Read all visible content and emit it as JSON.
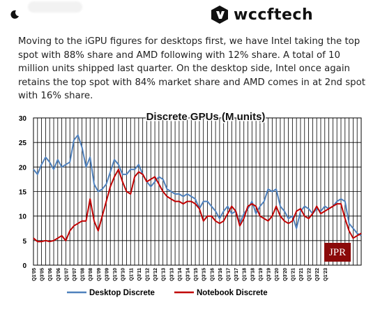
{
  "header": {
    "brand_name": "wccftech",
    "brand_icon": "wccftech-logo-icon",
    "theme_icon": "moon-icon"
  },
  "article": {
    "paragraph": "Moving to the iGPU figures for desktops first, we have Intel taking the top spot with 88% share and AMD following with 12% share. A total of 10 million units shipped last quarter. On the desktop side, Intel once again retains the top spot with 84% market share and AMD comes in at 2nd spot with 16% share."
  },
  "chart_data": {
    "type": "line",
    "title": "Discrete GPUs (M units)",
    "ylim": [
      0,
      30
    ],
    "yticks": [
      0,
      5,
      10,
      15,
      20,
      25,
      30
    ],
    "grid": true,
    "legend_position": "bottom",
    "watermark": "JPR",
    "xtick_labels": [
      "Q1'05",
      "Q3'05",
      "Q1'06",
      "Q3'06",
      "Q1'07",
      "Q3'07",
      "Q1'08",
      "Q3'08",
      "Q1'09",
      "Q3'09",
      "Q1'10",
      "Q3'10",
      "Q1'11",
      "Q3'11",
      "Q1'12",
      "Q3'12",
      "Q1'13",
      "Q3'13",
      "Q1'14",
      "Q3'14",
      "Q1'15",
      "Q3'15",
      "Q1'16",
      "Q3'16",
      "Q1'17",
      "Q3'17",
      "Q1'18",
      "Q3'18",
      "Q1'19",
      "Q3'19",
      "Q1'20",
      "Q3'20",
      "Q1'21",
      "Q3'21",
      "Q1'22",
      "Q3'22",
      "Q1'23"
    ],
    "series": [
      {
        "name": "Desktop Discrete",
        "color": "#4f81bd",
        "values": [
          19.5,
          18.5,
          20.5,
          22,
          21,
          19.5,
          21.5,
          20,
          20.5,
          21,
          25.5,
          26.5,
          24,
          20,
          22,
          16.5,
          15,
          15.5,
          16.5,
          19,
          21.5,
          20.5,
          18.5,
          18.5,
          19.5,
          19.5,
          20.5,
          18.5,
          17,
          16,
          17,
          18,
          17.5,
          15.5,
          15,
          14.5,
          14.5,
          14,
          14.5,
          14,
          13.5,
          11.5,
          13,
          13,
          12,
          11,
          9.5,
          11,
          12,
          10.5,
          11,
          8.5,
          10.5,
          11.5,
          13,
          10.5,
          12,
          13,
          15.5,
          15,
          15.5,
          12,
          11,
          9.5,
          10,
          7.5,
          11,
          12,
          11.5,
          10.5,
          11.5,
          11,
          12,
          11.5,
          12,
          13,
          13.5,
          13,
          8.5,
          7.5,
          6.5,
          6
        ]
      },
      {
        "name": "Notebook Discrete",
        "color": "#c00000",
        "values": [
          5.5,
          4.8,
          4.8,
          5,
          4.8,
          5,
          5.5,
          6,
          5,
          7,
          8,
          8.5,
          9,
          9,
          13.5,
          9,
          7,
          10,
          13,
          16,
          18,
          19.5,
          17,
          15,
          14.5,
          18,
          19,
          18.5,
          17,
          17.5,
          18,
          16.5,
          15,
          14,
          13.5,
          13,
          13,
          12.5,
          13,
          13,
          12.5,
          11.5,
          9,
          10,
          10,
          9,
          8.5,
          9,
          10.5,
          12,
          11,
          8,
          9.5,
          12,
          12.5,
          12,
          10,
          9.5,
          9,
          10,
          12,
          10,
          9,
          8.5,
          9,
          11,
          11.5,
          10,
          9.5,
          10.5,
          12,
          10.5,
          11,
          11.5,
          12,
          12.5,
          12.5,
          9.5,
          7,
          5.5,
          6,
          6.5
        ]
      }
    ]
  }
}
